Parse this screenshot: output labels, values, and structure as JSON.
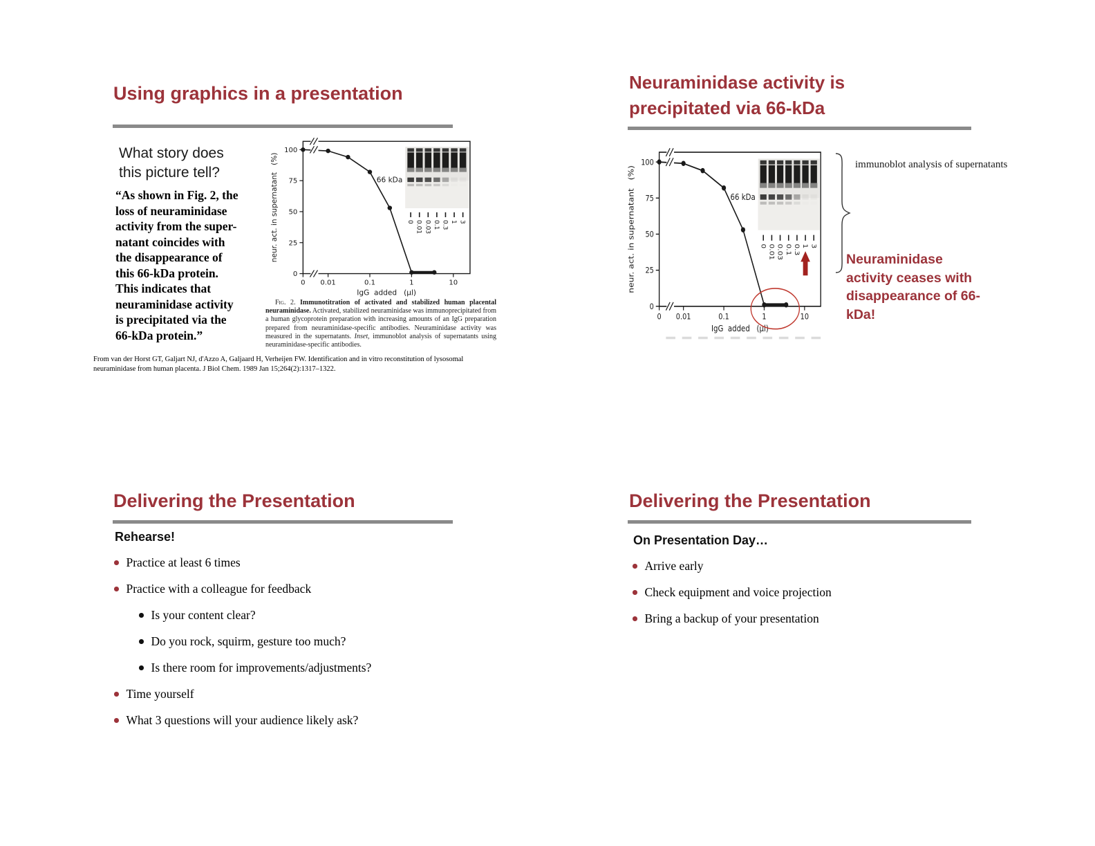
{
  "theme": {
    "maroon": "#9c333a",
    "divider": "#8a8a8a",
    "arrow_red": "#a2221f",
    "ellipse_red": "#c03a30"
  },
  "slides": [
    {
      "title": "Using graphics in a presentation",
      "heading_lines": [
        "What story does",
        "this picture tell?"
      ],
      "quote_lines": [
        "“As shown in Fig. 2, the",
        "loss of neuraminidase",
        "activity from the super-",
        "natant coincides with",
        "the disappearance of",
        "this 66-kDa protein.",
        "This indicates that",
        "neuraminidase activity",
        "is precipitated via the",
        "66-kDa protein.”"
      ],
      "caption": {
        "fig": "Fig. 2. ",
        "bold": "Immunotitration of activated and stabilized human placental neuraminidase.",
        "body1": " Activated, stabilized neuraminidase was immunoprecipitated from a human glycoprotein preparation with increasing amounts of an IgG preparation prepared from neuraminidase-specific antibodies. Neuraminidase activity was measured in the supernatants. ",
        "inset_word": "Inset,",
        "body2": " immunoblot analysis of supernatants using neuraminidase-specific antibodies."
      },
      "citation": "From van der Horst GT, Galjart NJ, d'Azzo A, Galjaard H, Verheijen FW. Identification and in vitro reconstitution of lysosomal neuraminidase from human placenta. J Biol Chem.  1989 Jan 15;264(2):1317–1322."
    },
    {
      "title_lines": [
        "Neuraminidase activity is",
        "precipitated via 66-kDa"
      ],
      "brace_label": "immunoblot analysis of supernatants",
      "callout_lines": [
        "Neuraminidase",
        "activity ceases with",
        "disappearance of 66-",
        "kDa!"
      ]
    },
    {
      "title": "Delivering the Presentation",
      "heading": "Rehearse!",
      "bullets": [
        {
          "level": 1,
          "text": "Practice at least 6 times"
        },
        {
          "level": 1,
          "text": "Practice with a colleague for feedback"
        },
        {
          "level": 2,
          "text": "Is your content clear?"
        },
        {
          "level": 2,
          "text": "Do you rock, squirm, gesture too much?"
        },
        {
          "level": 2,
          "text": "Is there room for improvements/adjustments?"
        },
        {
          "level": 1,
          "text": "Time yourself"
        },
        {
          "level": 1,
          "text": "What 3 questions will your audience likely ask?"
        }
      ]
    },
    {
      "title": "Delivering the Presentation",
      "heading": "On Presentation Day…",
      "bullets": [
        {
          "level": 1,
          "text": "Arrive early"
        },
        {
          "level": 1,
          "text": "Check equipment and voice projection"
        },
        {
          "level": 1,
          "text": "Bring a backup of your presentation"
        }
      ]
    }
  ],
  "chart_data": {
    "type": "line",
    "title": "Fig. 2. Immunotitration of activated and stabilized human placental neuraminidase",
    "xlabel": "IgG  added   (µl)",
    "ylabel": "neur. act. in supernatant   (%)",
    "x_scale": "log with zero break",
    "x_ticks": [
      "0",
      "0.01",
      "0.1",
      "1",
      "10"
    ],
    "y_ticks": [
      0,
      25,
      50,
      75,
      100
    ],
    "ylim": [
      0,
      100
    ],
    "series": [
      {
        "name": "neuraminidase activity in supernatant",
        "x": [
          0,
          0.01,
          0.03,
          0.1,
          0.3,
          1,
          3.5
        ],
        "y": [
          100,
          99,
          94,
          82,
          53,
          1,
          1
        ]
      }
    ],
    "inset": {
      "label": "66 kDa",
      "lanes": [
        "0",
        "0.01",
        "0.03",
        "0.1",
        "0.3",
        "1",
        "3"
      ],
      "band_66kda_intensity": [
        0.85,
        0.8,
        0.75,
        0.6,
        0.32,
        0.05,
        0.03
      ]
    }
  }
}
